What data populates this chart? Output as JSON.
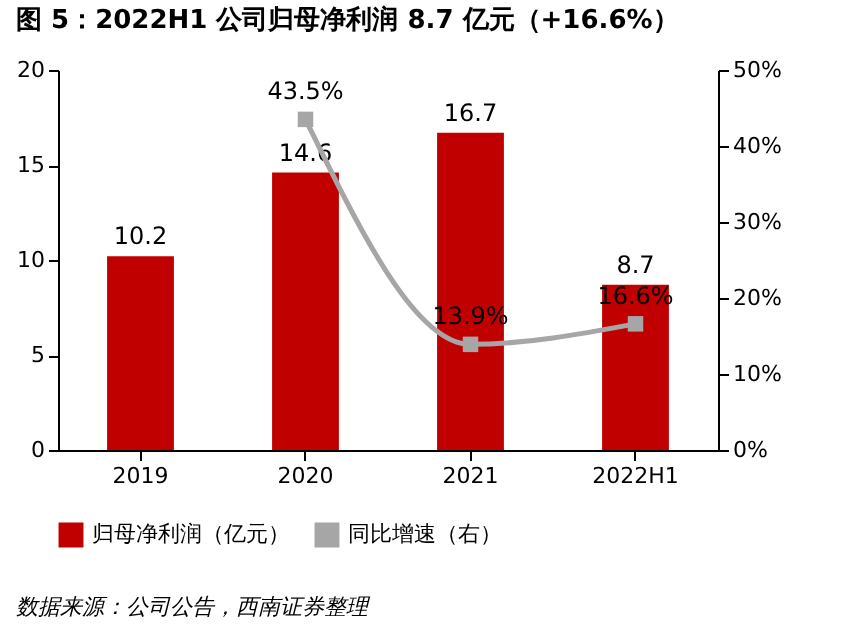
{
  "chart_data": {
    "type": "bar",
    "title": "图 5：2022H1 公司归母净利润 8.7 亿元（+16.6%）",
    "categories": [
      "2019",
      "2020",
      "2021",
      "2022H1"
    ],
    "series": [
      {
        "name": "归母净利润（亿元）",
        "color": "#c00000",
        "values": [
          10.2,
          14.6,
          16.7,
          8.7
        ],
        "value_labels": [
          "10.2",
          "14.6",
          "16.7",
          "8.7"
        ]
      },
      {
        "name": "同比增速（右）",
        "type": "line",
        "axis": "y2",
        "color": "#a6a6a6",
        "marker": "square",
        "values": [
          null,
          43.5,
          13.9,
          16.6
        ],
        "value_labels": [
          null,
          "43.5%",
          "13.9%",
          "16.6%"
        ]
      }
    ],
    "ylim": [
      0,
      20
    ],
    "yticks": [
      0,
      5,
      10,
      15,
      20
    ],
    "y2lim": [
      0,
      50
    ],
    "y2ticks": [
      {
        "value": 0,
        "label": "0%"
      },
      {
        "value": 10,
        "label": "10%"
      },
      {
        "value": 20,
        "label": "20%"
      },
      {
        "value": 30,
        "label": "30%"
      },
      {
        "value": 40,
        "label": "40%"
      },
      {
        "value": 50,
        "label": "50%"
      }
    ],
    "legend": "bottom",
    "grid": false,
    "annotations": [
      "数据来源：公司公告，西南证券整理"
    ]
  }
}
